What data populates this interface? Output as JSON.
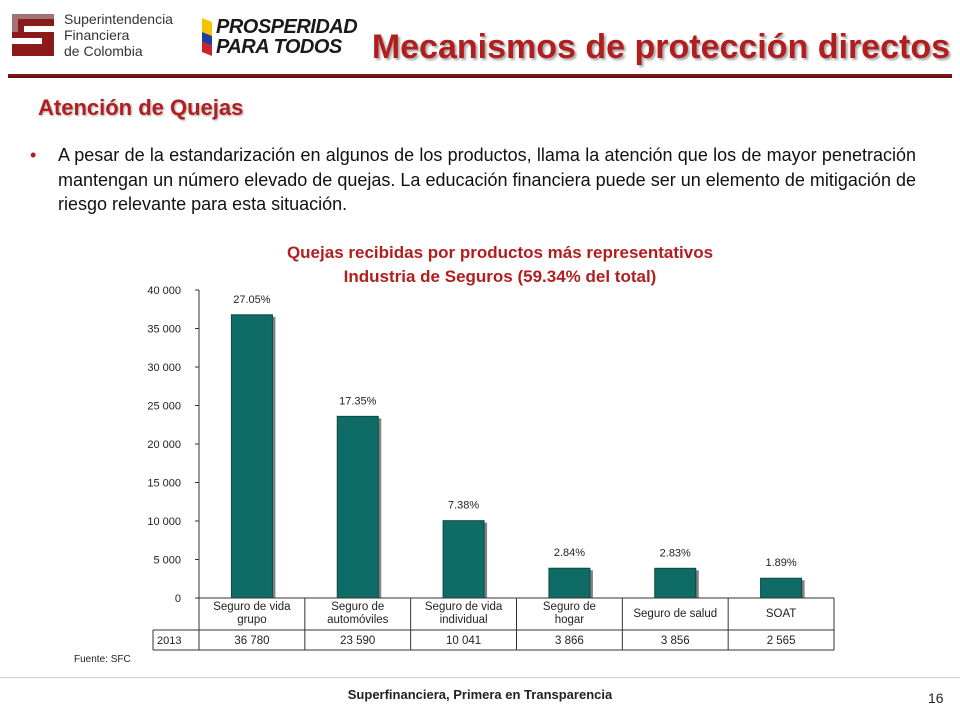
{
  "header": {
    "sfc_logo_lines": [
      "Superintendencia",
      "Financiera",
      "de Colombia"
    ],
    "campaign_logo_lines": [
      "PROSPERIDAD",
      "PARA TODOS"
    ],
    "title": "Mecanismos de protección directos"
  },
  "section": {
    "subtitle": "Atención de Quejas",
    "bullet": "A pesar de la estandarización en algunos de los productos, llama la atención que los de mayor penetración mantengan un número elevado de quejas. La educación financiera puede ser un elemento de mitigación de riesgo relevante para esta situación."
  },
  "chart_data": {
    "type": "bar",
    "title_line1": "Quejas recibidas por productos más representativos",
    "title_line2": "Industria de Seguros (59.34% del total)",
    "categories": [
      [
        "Seguro de vida",
        "grupo"
      ],
      [
        "Seguro de",
        "automóviles"
      ],
      [
        "Seguro de vida",
        "individual"
      ],
      [
        "Seguro de",
        "hogar"
      ],
      [
        "Seguro de salud"
      ],
      [
        "SOAT"
      ]
    ],
    "series": [
      {
        "name": "2013",
        "values": [
          36780,
          23590,
          10041,
          3866,
          3856,
          2565
        ]
      }
    ],
    "table_values": [
      "36 780",
      "23 590",
      "10 041",
      "3 866",
      "3 856",
      "2 565"
    ],
    "data_labels": [
      "27.05%",
      "17.35%",
      "7.38%",
      "2.84%",
      "2.83%",
      "1.89%"
    ],
    "y_ticks": [
      "0",
      "5 000",
      "10 000",
      "15 000",
      "20 000",
      "25 000",
      "30 000",
      "35 000",
      "40 000"
    ],
    "ylim": [
      0,
      40000
    ],
    "grid": false,
    "bar_color": "#0e6b66"
  },
  "footer": {
    "source": "Fuente: SFC",
    "tagline": "Superfinanciera, Primera en Transparencia",
    "page_number": "16"
  },
  "colors": {
    "accent": "#b21e1e"
  }
}
